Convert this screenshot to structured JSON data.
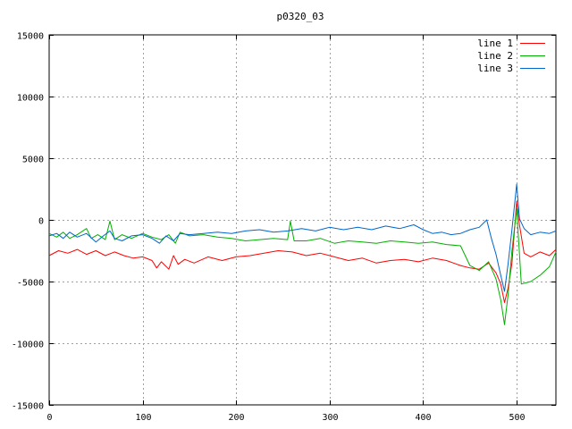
{
  "chart_data": {
    "type": "line",
    "title": "p0320_03",
    "xlabel": "",
    "ylabel": "",
    "xlim": [
      0,
      542
    ],
    "ylim": [
      -15000,
      15000
    ],
    "x_ticks": [
      0,
      100,
      200,
      300,
      400,
      500
    ],
    "y_ticks": [
      -15000,
      -10000,
      -5000,
      0,
      5000,
      10000,
      15000
    ],
    "x_tick_labels": [
      "0",
      "100",
      "200",
      "300",
      "400",
      "500"
    ],
    "y_tick_labels": [
      "-15000",
      "-10000",
      "-5000",
      "0",
      "5000",
      "10000",
      "15000"
    ],
    "grid": true,
    "legend_position": "top-right",
    "series": [
      {
        "name": "line 1",
        "color": "#ff0000",
        "points": [
          [
            0,
            -2900
          ],
          [
            10,
            -2500
          ],
          [
            20,
            -2700
          ],
          [
            30,
            -2400
          ],
          [
            40,
            -2800
          ],
          [
            50,
            -2500
          ],
          [
            60,
            -2900
          ],
          [
            70,
            -2600
          ],
          [
            80,
            -2900
          ],
          [
            90,
            -3100
          ],
          [
            100,
            -3000
          ],
          [
            110,
            -3300
          ],
          [
            115,
            -3900
          ],
          [
            120,
            -3400
          ],
          [
            128,
            -4000
          ],
          [
            133,
            -2900
          ],
          [
            138,
            -3600
          ],
          [
            145,
            -3200
          ],
          [
            155,
            -3500
          ],
          [
            170,
            -3000
          ],
          [
            185,
            -3300
          ],
          [
            200,
            -3000
          ],
          [
            215,
            -2900
          ],
          [
            230,
            -2700
          ],
          [
            245,
            -2500
          ],
          [
            260,
            -2600
          ],
          [
            275,
            -2900
          ],
          [
            290,
            -2700
          ],
          [
            305,
            -3000
          ],
          [
            320,
            -3300
          ],
          [
            335,
            -3100
          ],
          [
            350,
            -3500
          ],
          [
            365,
            -3300
          ],
          [
            380,
            -3200
          ],
          [
            395,
            -3400
          ],
          [
            410,
            -3100
          ],
          [
            425,
            -3300
          ],
          [
            440,
            -3700
          ],
          [
            450,
            -3900
          ],
          [
            460,
            -4000
          ],
          [
            470,
            -3500
          ],
          [
            478,
            -4300
          ],
          [
            483,
            -5200
          ],
          [
            487,
            -6700
          ],
          [
            491,
            -5500
          ],
          [
            495,
            -3500
          ],
          [
            500,
            1500
          ],
          [
            503,
            -400
          ],
          [
            508,
            -2700
          ],
          [
            515,
            -3000
          ],
          [
            525,
            -2600
          ],
          [
            535,
            -2900
          ],
          [
            542,
            -2400
          ]
        ]
      },
      {
        "name": "line 2",
        "color": "#00b000",
        "points": [
          [
            0,
            -1100
          ],
          [
            8,
            -1400
          ],
          [
            15,
            -1000
          ],
          [
            22,
            -1500
          ],
          [
            30,
            -1200
          ],
          [
            40,
            -700
          ],
          [
            45,
            -1500
          ],
          [
            52,
            -1200
          ],
          [
            60,
            -1600
          ],
          [
            65,
            -100
          ],
          [
            70,
            -1600
          ],
          [
            78,
            -1200
          ],
          [
            88,
            -1500
          ],
          [
            100,
            -1100
          ],
          [
            110,
            -1400
          ],
          [
            120,
            -1600
          ],
          [
            128,
            -1200
          ],
          [
            135,
            -1900
          ],
          [
            140,
            -1000
          ],
          [
            150,
            -1300
          ],
          [
            165,
            -1200
          ],
          [
            180,
            -1400
          ],
          [
            195,
            -1500
          ],
          [
            210,
            -1700
          ],
          [
            225,
            -1600
          ],
          [
            240,
            -1500
          ],
          [
            255,
            -1600
          ],
          [
            258,
            -100
          ],
          [
            262,
            -1700
          ],
          [
            275,
            -1700
          ],
          [
            290,
            -1500
          ],
          [
            305,
            -1900
          ],
          [
            320,
            -1700
          ],
          [
            335,
            -1800
          ],
          [
            350,
            -1900
          ],
          [
            365,
            -1700
          ],
          [
            380,
            -1800
          ],
          [
            395,
            -1900
          ],
          [
            410,
            -1800
          ],
          [
            425,
            -2000
          ],
          [
            440,
            -2100
          ],
          [
            450,
            -3700
          ],
          [
            460,
            -4100
          ],
          [
            470,
            -3400
          ],
          [
            478,
            -4800
          ],
          [
            483,
            -6500
          ],
          [
            487,
            -8500
          ],
          [
            491,
            -6000
          ],
          [
            495,
            -2500
          ],
          [
            500,
            900
          ],
          [
            505,
            -5200
          ],
          [
            515,
            -5000
          ],
          [
            525,
            -4500
          ],
          [
            535,
            -3800
          ],
          [
            542,
            -2600
          ]
        ]
      },
      {
        "name": "line 3",
        "color": "#0066cc",
        "points": [
          [
            0,
            -1300
          ],
          [
            8,
            -1100
          ],
          [
            15,
            -1500
          ],
          [
            22,
            -1000
          ],
          [
            30,
            -1400
          ],
          [
            40,
            -1100
          ],
          [
            50,
            -1800
          ],
          [
            58,
            -1300
          ],
          [
            65,
            -900
          ],
          [
            70,
            -1500
          ],
          [
            78,
            -1700
          ],
          [
            88,
            -1300
          ],
          [
            100,
            -1200
          ],
          [
            110,
            -1500
          ],
          [
            118,
            -1900
          ],
          [
            125,
            -1300
          ],
          [
            133,
            -1700
          ],
          [
            140,
            -1100
          ],
          [
            150,
            -1200
          ],
          [
            165,
            -1100
          ],
          [
            180,
            -1000
          ],
          [
            195,
            -1100
          ],
          [
            210,
            -900
          ],
          [
            225,
            -800
          ],
          [
            240,
            -1000
          ],
          [
            255,
            -900
          ],
          [
            270,
            -700
          ],
          [
            285,
            -900
          ],
          [
            300,
            -600
          ],
          [
            315,
            -800
          ],
          [
            330,
            -600
          ],
          [
            345,
            -800
          ],
          [
            360,
            -500
          ],
          [
            375,
            -700
          ],
          [
            390,
            -400
          ],
          [
            400,
            -800
          ],
          [
            410,
            -1100
          ],
          [
            420,
            -1000
          ],
          [
            430,
            -1200
          ],
          [
            440,
            -1100
          ],
          [
            450,
            -800
          ],
          [
            460,
            -600
          ],
          [
            468,
            0
          ],
          [
            473,
            -1500
          ],
          [
            478,
            -2800
          ],
          [
            483,
            -4500
          ],
          [
            487,
            -5800
          ],
          [
            491,
            -3500
          ],
          [
            495,
            -800
          ],
          [
            500,
            2900
          ],
          [
            503,
            100
          ],
          [
            508,
            -700
          ],
          [
            515,
            -1200
          ],
          [
            525,
            -1000
          ],
          [
            535,
            -1100
          ],
          [
            542,
            -900
          ]
        ]
      }
    ]
  }
}
